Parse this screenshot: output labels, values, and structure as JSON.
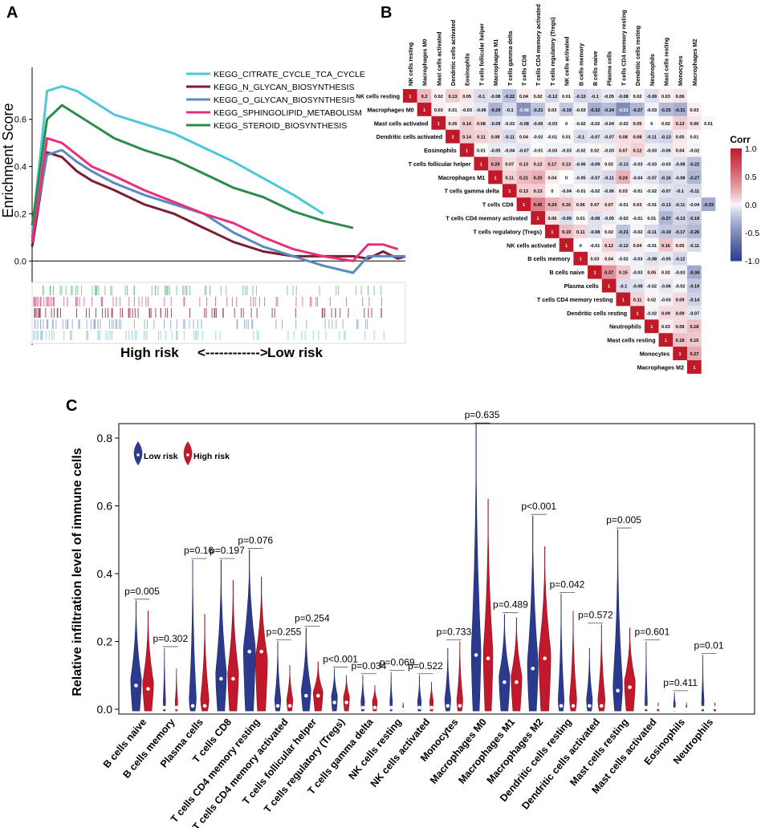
{
  "panels": {
    "a": "A",
    "b": "B",
    "c": "C"
  },
  "chart_data": [
    {
      "type": "line",
      "id": "gsea",
      "title": "",
      "ylabel": "Enrichment Score",
      "ylim": [
        -0.05,
        0.82
      ],
      "yticks": [
        0.0,
        0.2,
        0.4,
        0.6
      ],
      "ytick_labels": [
        "0.0",
        "0.2",
        "0.4",
        "0.6"
      ],
      "xlabel_left": "High risk",
      "xlabel_arrow": "<------------>",
      "xlabel_right": "Low risk",
      "x": [
        0,
        0.04,
        0.08,
        0.12,
        0.16,
        0.22,
        0.3,
        0.38,
        0.46,
        0.54,
        0.62,
        0.7,
        0.78,
        0.86,
        0.9,
        0.94,
        0.98,
        1.0
      ],
      "series": [
        {
          "name": "KEGG_CITRATE_CYCLE_TCA_CYCLE",
          "color": "#4ec8d8",
          "values": [
            0.12,
            0.72,
            0.74,
            0.72,
            0.68,
            0.62,
            0.58,
            0.54,
            0.48,
            0.42,
            0.35,
            0.28,
            0.2,
            null,
            null,
            null,
            null,
            null
          ]
        },
        {
          "name": "KEGG_N_GLYCAN_BIOSYNTHESIS",
          "color": "#7a1f2e",
          "values": [
            0.06,
            0.46,
            0.44,
            0.38,
            0.34,
            0.3,
            0.24,
            0.2,
            0.14,
            0.08,
            0.04,
            0.02,
            0.02,
            0.02,
            0.01,
            0.04,
            0.01,
            0.02
          ]
        },
        {
          "name": "KEGG_O_GLYCAN_BIOSYNTHESIS",
          "color": "#5a8abf",
          "values": [
            0.1,
            0.45,
            0.47,
            0.42,
            0.38,
            0.33,
            0.28,
            0.24,
            0.2,
            0.12,
            0.06,
            0.02,
            -0.02,
            -0.05,
            0.02,
            0.02,
            0.02,
            0.02
          ]
        },
        {
          "name": "KEGG_SPHINGOLIPID_METABOLISM",
          "color": "#e8307a",
          "values": [
            0.08,
            0.52,
            0.5,
            0.45,
            0.4,
            0.36,
            0.3,
            0.25,
            0.2,
            0.16,
            0.1,
            0.05,
            0.02,
            0.0,
            0.07,
            0.07,
            0.05,
            null
          ]
        },
        {
          "name": "KEGG_STEROID_BIOSYNTHESIS",
          "color": "#2e8b4e",
          "values": [
            0.15,
            0.6,
            0.66,
            0.62,
            0.58,
            0.52,
            0.47,
            0.43,
            0.37,
            0.31,
            0.27,
            0.21,
            0.17,
            0.14,
            null,
            null,
            null,
            null
          ]
        }
      ]
    },
    {
      "type": "heatmap",
      "id": "corr",
      "legend_title": "Corr",
      "legend_ticks": [
        "1.0",
        "0.5",
        "0.0",
        "-0.5",
        "-1.0"
      ],
      "color_high": "#c0192a",
      "color_mid": "#ffffff",
      "color_low": "#2b3f8f",
      "labels": [
        "NK cells resting",
        "Macrophages M0",
        "Mast cells activated",
        "Dendritic cells activated",
        "Eosinophils",
        "T cells follicular helper",
        "Macrophages M1",
        "T cells gamma delta",
        "T cells CD8",
        "T cells CD4 memory activated",
        "T cells regulatory (Tregs)",
        "NK cells activated",
        "B cells memory",
        "B cells naive",
        "Plasma cells",
        "T cells CD4 memory resting",
        "Dendritic cells resting",
        "Neutrophils",
        "Mast cells resting",
        "Monocytes",
        "Macrophages M2"
      ],
      "rows": [
        [
          "1",
          "0.2",
          "0.02",
          "0.13",
          "0.05",
          "-0.1",
          "-0.08",
          "-0.22",
          "0.04",
          "0.02",
          "-0.12",
          "0.01",
          "-0.13",
          "-0.1",
          "-0.05",
          "-0.08",
          "0.02",
          "-0.09",
          "0.03",
          "0.06"
        ],
        [
          "1",
          "0.03",
          "0.01",
          "-0.03",
          "-0.06",
          "-0.29",
          "-0.1",
          "-0.48",
          "-0.21",
          "0.03",
          "-0.19",
          "-0.03",
          "-0.32",
          "-0.24",
          "-0.51",
          "-0.27",
          "-0.03",
          "-0.25",
          "-0.31",
          "0.03"
        ],
        [
          "1",
          "0.05",
          "0.14",
          "0.08",
          "-0.09",
          "-0.03",
          "-0.08",
          "-0.06",
          "-0.03",
          "0",
          "-0.02",
          "-0.02",
          "-0.04",
          "-0.02",
          "0.05",
          "0",
          "0.02",
          "0.13",
          "0.06",
          "0.01"
        ],
        [
          "1",
          "0.14",
          "0.11",
          "0.08",
          "-0.11",
          "0.04",
          "-0.02",
          "-0.01",
          "0.01",
          "-0.1",
          "-0.07",
          "-0.07",
          "0.08",
          "0.08",
          "-0.11",
          "-0.13",
          "0.05",
          "0.01"
        ],
        [
          "1",
          "0.01",
          "-0.05",
          "-0.04",
          "-0.07",
          "-0.01",
          "-0.03",
          "-0.03",
          "-0.02",
          "0.02",
          "-0.03",
          "0.07",
          "0.12",
          "-0.03",
          "-0.06",
          "0.04",
          "-0.02"
        ],
        [
          "1",
          "0.29",
          "0.07",
          "0.13",
          "0.12",
          "0.17",
          "0.13",
          "-0.06",
          "-0.09",
          "0.02",
          "-0.13",
          "-0.03",
          "-0.03",
          "-0.03",
          "-0.08",
          "-0.22"
        ],
        [
          "1",
          "0.11",
          "0.21",
          "0.25",
          "0.04",
          "0",
          "-0.05",
          "-0.07",
          "-0.11",
          "0.24",
          "-0.04",
          "-0.07",
          "-0.16",
          "-0.08",
          "-0.27"
        ],
        [
          "1",
          "0.13",
          "0.13",
          "0",
          "-0.04",
          "-0.01",
          "-0.02",
          "-0.06",
          "0.03",
          "-0.01",
          "-0.02",
          "-0.07",
          "-0.1",
          "-0.11"
        ],
        [
          "1",
          "0.45",
          "0.24",
          "0.16",
          "0.06",
          "0.07",
          "0.07",
          "-0.01",
          "0.03",
          "-0.01",
          "-0.13",
          "-0.11",
          "-0.04",
          "-0.33"
        ],
        [
          "1",
          "0.06",
          "-0.09",
          "0.01",
          "-0.08",
          "-0.05",
          "-0.02",
          "-0.01",
          "0.01",
          "-0.27",
          "-0.13",
          "-0.19"
        ],
        [
          "1",
          "0.19",
          "0.11",
          "-0.08",
          "0.02",
          "-0.21",
          "-0.02",
          "-0.11",
          "-0.19",
          "-0.17",
          "-0.26"
        ],
        [
          "1",
          "0",
          "-0.01",
          "0.12",
          "-0.12",
          "0.04",
          "-0.01",
          "0.16",
          "0.05",
          "-0.11"
        ],
        [
          "1",
          "0.03",
          "0.04",
          "-0.02",
          "-0.03",
          "-0.08",
          "-0.05",
          "-0.12"
        ],
        [
          "1",
          "0.37",
          "0.15",
          "-0.03",
          "0.05",
          "0.02",
          "-0.03",
          "-0.34"
        ],
        [
          "1",
          "-0.1",
          "-0.08",
          "-0.02",
          "-0.06",
          "-0.02",
          "-0.19"
        ],
        [
          "1",
          "0.11",
          "0.02",
          "-0.03",
          "0.09",
          "-0.14"
        ],
        [
          "1",
          "-0.02",
          "0.09",
          "0.09",
          "-0.07"
        ],
        [
          "1",
          "0.03",
          "0.09",
          "0.18"
        ],
        [
          "1",
          "0.18",
          "0.15"
        ],
        [
          "1",
          "0.27"
        ],
        [
          "1"
        ]
      ]
    },
    {
      "type": "violin",
      "id": "violin",
      "ylabel": "Relative infiltration level of immune cells",
      "ylim": [
        0,
        0.85
      ],
      "yticks": [
        0.0,
        0.2,
        0.4,
        0.6,
        0.8
      ],
      "ytick_labels": [
        "0.0",
        "0.2",
        "0.4",
        "0.6",
        "0.8"
      ],
      "legend": [
        {
          "name": "Low risk",
          "color": "#2b3a8c"
        },
        {
          "name": "High risk",
          "color": "#c2182b"
        }
      ],
      "categories": [
        "B cells naive",
        "B cells memory",
        "Plasma cells",
        "T cells CD8",
        "T cells CD4 memory resting",
        "T cells CD4 memory activated",
        "T cells follicular helper",
        "T cells regulatory (Tregs)",
        "T cells gamma delta",
        "NK cells resting",
        "NK cells activated",
        "Monocytes",
        "Macrophages M0",
        "Macrophages M1",
        "Macrophages M2",
        "Dendritic cells resting",
        "Dendritic cells activated",
        "Mast cells resting",
        "Mast cells activated",
        "Eosinophils",
        "Neutrophils"
      ],
      "pvalues": [
        "p=0.005",
        "p=0.302",
        "p=0.16",
        "p=0.197",
        "p=0.076",
        "p=0.255",
        "p=0.254",
        "p<0.001",
        "p=0.034",
        "p=0.069",
        "p=0.522",
        "p=0.733",
        "p=0.635",
        "p=0.489",
        "p<0.001",
        "p=0.042",
        "p=0.572",
        "p=0.005",
        "p=0.601",
        "p=0.411",
        "p=0.01"
      ],
      "low_max": [
        0.32,
        0.18,
        0.44,
        0.44,
        0.47,
        0.2,
        0.24,
        0.12,
        0.1,
        0.11,
        0.1,
        0.18,
        0.84,
        0.28,
        0.57,
        0.34,
        0.18,
        0.53,
        0.2,
        0.05,
        0.16
      ],
      "high_max": [
        0.29,
        0.12,
        0.28,
        0.38,
        0.39,
        0.13,
        0.14,
        0.1,
        0.07,
        0.02,
        0.08,
        0.2,
        0.62,
        0.27,
        0.48,
        0.29,
        0.25,
        0.24,
        0.02,
        0.02,
        0.02
      ],
      "low_median": [
        0.07,
        0.005,
        0.01,
        0.09,
        0.17,
        0.01,
        0.04,
        0.02,
        0.005,
        0.005,
        0.005,
        0.01,
        0.16,
        0.08,
        0.12,
        0.01,
        0.01,
        0.055,
        0.005,
        0.0,
        0.005
      ],
      "high_median": [
        0.06,
        0.005,
        0.01,
        0.09,
        0.17,
        0.01,
        0.04,
        0.02,
        0.005,
        0.0,
        0.005,
        0.01,
        0.15,
        0.08,
        0.15,
        0.01,
        0.01,
        0.065,
        0.005,
        0.0,
        0.005
      ],
      "low_width": [
        0.9,
        0.2,
        0.6,
        0.9,
        1.0,
        0.5,
        0.8,
        0.5,
        0.3,
        0.2,
        0.3,
        0.5,
        0.8,
        0.9,
        0.9,
        0.5,
        0.5,
        0.8,
        0.2,
        0.15,
        0.2
      ],
      "high_width": [
        0.9,
        0.2,
        0.7,
        0.9,
        1.0,
        0.5,
        0.8,
        0.5,
        0.4,
        0.1,
        0.3,
        0.5,
        0.8,
        0.9,
        1.0,
        0.6,
        0.6,
        0.9,
        0.2,
        0.1,
        0.2
      ]
    }
  ]
}
